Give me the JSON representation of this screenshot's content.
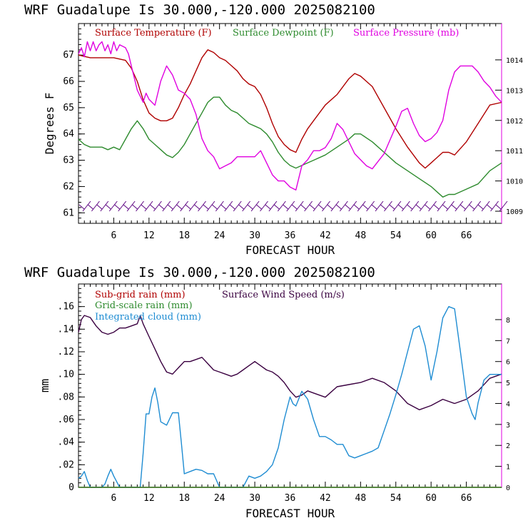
{
  "colors": {
    "temperature": "#b00000",
    "dewpoint": "#2e8b2e",
    "pressure": "#e000e0",
    "subgrid": "#b00000",
    "gridscale": "#2e8b2e",
    "cloud": "#1e8cd2",
    "windspeed": "#3a0040",
    "barbs": "#5a0080"
  },
  "chart_data": [
    {
      "type": "line",
      "title": "WRF   Guadalupe Is  30.000,-120.000  2025082100",
      "xlabel": "FORECAST HOUR",
      "ylabel": "Degrees F",
      "xlim": [
        0,
        72
      ],
      "ylim": [
        60.6,
        68.2
      ],
      "y2lim": [
        1008.6,
        1015.2
      ],
      "xticks": [
        "6",
        "12",
        "18",
        "24",
        "30",
        "36",
        "42",
        "48",
        "54",
        "60",
        "66"
      ],
      "yticks": [
        "61",
        "62",
        "63",
        "64",
        "65",
        "66",
        "67"
      ],
      "y2ticks": [
        "1009",
        "1010",
        "1011",
        "1012",
        "1013",
        "1014"
      ],
      "legend_items": [
        "Surface Temperature (F)",
        "Surface Dewpoint (F)",
        "Surface Pressure (mb)"
      ],
      "series": [
        {
          "name": "Surface Temperature (F)",
          "axis": "left",
          "x": [
            0,
            2,
            4,
            6,
            8,
            9,
            10,
            11,
            12,
            13,
            14,
            15,
            16,
            17,
            18,
            19,
            20,
            21,
            22,
            23,
            24,
            25,
            26,
            27,
            28,
            29,
            30,
            31,
            32,
            33,
            34,
            35,
            36,
            37,
            38,
            39,
            40,
            42,
            44,
            46,
            47,
            48,
            50,
            52,
            54,
            56,
            58,
            59,
            60,
            61,
            62,
            63,
            64,
            66,
            68,
            70,
            72
          ],
          "y": [
            67.0,
            66.9,
            66.9,
            66.9,
            66.8,
            66.5,
            66.0,
            65.3,
            64.8,
            64.6,
            64.5,
            64.5,
            64.6,
            65.0,
            65.5,
            65.9,
            66.4,
            66.9,
            67.2,
            67.1,
            66.9,
            66.8,
            66.6,
            66.4,
            66.1,
            65.9,
            65.8,
            65.5,
            65.0,
            64.4,
            63.9,
            63.6,
            63.4,
            63.3,
            63.8,
            64.2,
            64.5,
            65.1,
            65.5,
            66.1,
            66.3,
            66.2,
            65.8,
            65.0,
            64.2,
            63.5,
            62.9,
            62.7,
            62.9,
            63.1,
            63.3,
            63.3,
            63.2,
            63.7,
            64.4,
            65.1,
            65.2
          ]
        },
        {
          "name": "Surface Dewpoint (F)",
          "axis": "left",
          "x": [
            0,
            1,
            2,
            3,
            4,
            5,
            6,
            7,
            8,
            9,
            10,
            11,
            12,
            13,
            14,
            15,
            16,
            17,
            18,
            19,
            20,
            21,
            22,
            23,
            24,
            25,
            26,
            27,
            28,
            29,
            30,
            31,
            32,
            33,
            34,
            35,
            36,
            37,
            38,
            40,
            42,
            44,
            46,
            47,
            48,
            50,
            52,
            54,
            56,
            58,
            60,
            61,
            62,
            63,
            64,
            66,
            68,
            70,
            72
          ],
          "y": [
            63.8,
            63.6,
            63.5,
            63.5,
            63.5,
            63.4,
            63.5,
            63.4,
            63.8,
            64.2,
            64.5,
            64.2,
            63.8,
            63.6,
            63.4,
            63.2,
            63.1,
            63.3,
            63.6,
            64.0,
            64.4,
            64.8,
            65.2,
            65.4,
            65.4,
            65.1,
            64.9,
            64.8,
            64.6,
            64.4,
            64.3,
            64.2,
            64.0,
            63.7,
            63.3,
            63.0,
            62.8,
            62.7,
            62.8,
            63.0,
            63.2,
            63.5,
            63.8,
            64.0,
            64.0,
            63.7,
            63.3,
            62.9,
            62.6,
            62.3,
            62.0,
            61.8,
            61.6,
            61.7,
            61.7,
            61.9,
            62.1,
            62.6,
            62.9
          ]
        },
        {
          "name": "Surface Pressure (mb)",
          "axis": "right",
          "x": [
            0,
            0.5,
            1,
            1.5,
            2,
            2.5,
            3,
            3.5,
            4,
            4.5,
            5,
            5.5,
            6,
            6.5,
            7,
            8,
            8.5,
            9,
            10,
            11,
            11.5,
            12,
            13,
            14,
            15,
            16,
            17,
            18,
            19,
            20,
            21,
            22,
            23,
            24,
            25,
            26,
            27,
            28,
            29,
            30,
            31,
            32,
            33,
            34,
            35,
            36,
            37,
            38,
            39,
            40,
            41,
            42,
            43,
            44,
            45,
            46,
            47,
            48,
            49,
            50,
            52,
            54,
            55,
            56,
            57,
            58,
            59,
            60,
            61,
            62,
            63,
            64,
            65,
            66,
            67,
            68,
            69,
            70,
            71,
            72
          ],
          "y": [
            1014.2,
            1014.4,
            1014.1,
            1014.6,
            1014.3,
            1014.6,
            1014.3,
            1014.5,
            1014.6,
            1014.3,
            1014.5,
            1014.2,
            1014.6,
            1014.3,
            1014.5,
            1014.4,
            1014.2,
            1013.8,
            1013.0,
            1012.6,
            1012.9,
            1012.7,
            1012.5,
            1013.3,
            1013.8,
            1013.5,
            1013.0,
            1012.9,
            1012.7,
            1012.2,
            1011.4,
            1011.0,
            1010.8,
            1010.4,
            1010.5,
            1010.6,
            1010.8,
            1010.8,
            1010.8,
            1010.8,
            1011.0,
            1010.6,
            1010.2,
            1010.0,
            1010.0,
            1009.8,
            1009.7,
            1010.5,
            1010.7,
            1011.0,
            1011.0,
            1011.1,
            1011.4,
            1011.9,
            1011.7,
            1011.3,
            1010.9,
            1010.7,
            1010.5,
            1010.4,
            1010.9,
            1011.8,
            1012.3,
            1012.4,
            1011.9,
            1011.5,
            1011.3,
            1011.4,
            1011.6,
            1012.0,
            1013.0,
            1013.6,
            1013.8,
            1013.8,
            1013.8,
            1013.6,
            1013.3,
            1013.1,
            1012.8,
            1012.6
          ]
        }
      ],
      "wind_barbs_count": 48
    },
    {
      "type": "line",
      "title": "WRF   Guadalupe Is  30.000,-120.000  2025082100",
      "xlabel": "FORECAST HOUR",
      "ylabel": "mm",
      "xlim": [
        0,
        72
      ],
      "ylim": [
        0,
        0.18
      ],
      "y2lim": [
        0,
        9.7
      ],
      "xticks": [
        "6",
        "12",
        "18",
        "24",
        "30",
        "36",
        "42",
        "48",
        "54",
        "60",
        "66"
      ],
      "yticks": [
        "0",
        ".02",
        ".04",
        ".06",
        ".08",
        ".10",
        ".12",
        ".14",
        ".16"
      ],
      "y2ticks": [
        "0",
        "1",
        "2",
        "3",
        "4",
        "5",
        "6",
        "7",
        "8"
      ],
      "legend_items": [
        "Sub-grid rain (mm)",
        "Grid-scale rain (mm)",
        "Integrated cloud (mm)",
        "Surface Wind Speed (m/s)"
      ],
      "series": [
        {
          "name": "Surface Wind Speed (m/s)",
          "axis": "right",
          "x": [
            0,
            0.5,
            1,
            2,
            3,
            4,
            5,
            6,
            7,
            8,
            9,
            10,
            10.5,
            11,
            12,
            13,
            14,
            15,
            16,
            17,
            18,
            19,
            20,
            21,
            22,
            23,
            24,
            25,
            26,
            27,
            28,
            29,
            30,
            31,
            32,
            33,
            34,
            35,
            36,
            37,
            38,
            39,
            40,
            42,
            44,
            46,
            48,
            50,
            52,
            54,
            56,
            58,
            60,
            62,
            64,
            66,
            68,
            70,
            72
          ],
          "y": [
            7.4,
            8.0,
            8.2,
            8.1,
            7.7,
            7.4,
            7.3,
            7.4,
            7.6,
            7.6,
            7.7,
            7.8,
            8.2,
            7.8,
            7.2,
            6.6,
            6.0,
            5.5,
            5.4,
            5.7,
            6.0,
            6.0,
            6.1,
            6.2,
            5.9,
            5.6,
            5.5,
            5.4,
            5.3,
            5.4,
            5.6,
            5.8,
            6.0,
            5.8,
            5.6,
            5.5,
            5.3,
            5.0,
            4.6,
            4.3,
            4.4,
            4.6,
            4.5,
            4.3,
            4.8,
            4.9,
            5.0,
            5.2,
            5.0,
            4.6,
            4.0,
            3.7,
            3.9,
            4.2,
            4.0,
            4.2,
            4.6,
            5.2,
            5.4
          ]
        },
        {
          "name": "Integrated cloud (mm)",
          "axis": "left",
          "x": [
            0,
            0.5,
            1,
            1.5,
            2,
            3,
            4,
            4.5,
            5,
            5.5,
            6,
            7,
            8,
            9,
            10,
            10.5,
            11,
            11.5,
            12,
            12.5,
            13,
            13.5,
            14,
            15,
            16,
            17,
            17.5,
            18,
            19,
            20,
            21,
            22,
            23,
            24,
            25,
            26,
            27,
            28,
            29,
            30,
            31,
            32,
            33,
            34,
            35,
            36,
            36.5,
            37,
            38,
            39,
            40,
            41,
            42,
            43,
            44,
            45,
            46,
            47,
            48,
            49,
            50,
            51,
            52,
            53,
            54,
            55,
            56,
            57,
            58,
            59,
            60,
            61,
            62,
            63,
            64,
            65,
            66,
            67,
            67.5,
            68,
            69,
            70,
            71,
            72
          ],
          "y": [
            0.008,
            0.01,
            0.014,
            0.006,
            0.0,
            0.0,
            0.0,
            0.003,
            0.01,
            0.016,
            0.01,
            0.0,
            0.0,
            0.0,
            0.0,
            0.0,
            0.03,
            0.065,
            0.065,
            0.08,
            0.088,
            0.075,
            0.058,
            0.055,
            0.066,
            0.066,
            0.04,
            0.012,
            0.014,
            0.016,
            0.015,
            0.012,
            0.012,
            0.0,
            0.0,
            0.0,
            0.0,
            0.0,
            0.01,
            0.008,
            0.01,
            0.014,
            0.02,
            0.035,
            0.06,
            0.08,
            0.074,
            0.072,
            0.085,
            0.078,
            0.06,
            0.045,
            0.045,
            0.042,
            0.038,
            0.038,
            0.028,
            0.026,
            0.028,
            0.03,
            0.032,
            0.035,
            0.05,
            0.065,
            0.082,
            0.1,
            0.12,
            0.14,
            0.143,
            0.125,
            0.095,
            0.12,
            0.15,
            0.16,
            0.158,
            0.12,
            0.08,
            0.065,
            0.06,
            0.075,
            0.095,
            0.1,
            0.1,
            0.1
          ]
        },
        {
          "name": "Sub-grid rain (mm)",
          "axis": "left",
          "x": [
            0,
            72
          ],
          "y": [
            0,
            0
          ]
        },
        {
          "name": "Grid-scale rain (mm)",
          "axis": "left",
          "x": [
            0,
            72
          ],
          "y": [
            0,
            0
          ]
        }
      ]
    }
  ]
}
